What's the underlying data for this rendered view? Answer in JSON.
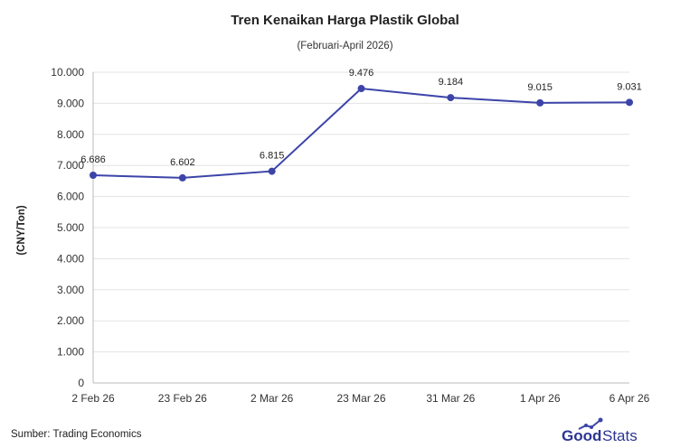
{
  "chart_data": {
    "type": "line",
    "title": "Tren Kenaikan Harga Plastik Global",
    "subtitle": "(Februari-April 2026)",
    "ylabel": "(CNY/Ton)",
    "xlabel": "",
    "categories": [
      "2 Feb 26",
      "23 Feb 26",
      "2 Mar 26",
      "23 Mar 26",
      "31 Mar 26",
      "1 Apr 26",
      "6 Apr 26"
    ],
    "values": [
      6686,
      6602,
      6815,
      9476,
      9184,
      9015,
      9031
    ],
    "value_labels": [
      "6.686",
      "6.602",
      "6.815",
      "9.476",
      "9.184",
      "9.015",
      "9.031"
    ],
    "yticks": [
      0,
      1000,
      2000,
      3000,
      4000,
      5000,
      6000,
      7000,
      8000,
      9000,
      10000
    ],
    "ytick_labels": [
      "0",
      "1.000",
      "2.000",
      "3.000",
      "4.000",
      "5.000",
      "6.000",
      "7.000",
      "8.000",
      "9.000",
      "10.000"
    ],
    "ylim": [
      0,
      10000
    ],
    "grid": true,
    "line_color": "#3c44a8"
  },
  "source": "Sumber: Trading Economics",
  "logo": {
    "text": "GoodStats",
    "icon": "trend-line-icon"
  }
}
